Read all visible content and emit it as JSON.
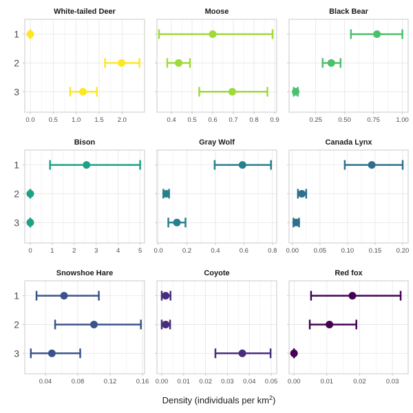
{
  "chart_data": {
    "type": "errorbar",
    "layout": "3x3 facets",
    "xlabel": "Density (individuals per km²)",
    "xlabel_base": "Density (individuals per km",
    "xlabel_sup": "2",
    "xlabel_tail": ")",
    "ylabel": "",
    "y_categories": [
      "1",
      "2",
      "3"
    ],
    "grid": true,
    "panels": [
      {
        "title": "White-tailed Deer",
        "color": "#FDE725",
        "xlim": [
          -0.12,
          2.49
        ],
        "xticks": [
          0.0,
          0.5,
          1.0,
          1.5,
          2.0
        ],
        "xtick_labels": [
          "0.0",
          "0.5",
          "1.0",
          "1.5",
          "2.0"
        ],
        "points": [
          {
            "y": "1",
            "x": 0.0,
            "low": 0.0,
            "high": 0.0
          },
          {
            "y": "2",
            "x": 1.99,
            "low": 1.63,
            "high": 2.38
          },
          {
            "y": "3",
            "x": 1.15,
            "low": 0.87,
            "high": 1.45
          }
        ]
      },
      {
        "title": "Moose",
        "color": "#A0DA39",
        "xlim": [
          0.33,
          0.91
        ],
        "xticks": [
          0.4,
          0.5,
          0.6,
          0.7,
          0.8,
          0.9
        ],
        "xtick_labels": [
          "0.4",
          "0.5",
          "0.6",
          "0.7",
          "0.8",
          "0.9"
        ],
        "points": [
          {
            "y": "1",
            "x": 0.6,
            "low": 0.34,
            "high": 0.89
          },
          {
            "y": "2",
            "x": 0.435,
            "low": 0.38,
            "high": 0.49
          },
          {
            "y": "3",
            "x": 0.695,
            "low": 0.535,
            "high": 0.865
          }
        ]
      },
      {
        "title": "Black Bear",
        "color": "#4AC16D",
        "xlim": [
          0.02,
          1.05
        ],
        "xticks": [
          0.25,
          0.5,
          0.75,
          1.0
        ],
        "xtick_labels": [
          "0.25",
          "0.50",
          "0.75",
          "1.00"
        ],
        "points": [
          {
            "y": "1",
            "x": 0.78,
            "low": 0.555,
            "high": 1.0
          },
          {
            "y": "2",
            "x": 0.385,
            "low": 0.31,
            "high": 0.465
          },
          {
            "y": "3",
            "x": 0.077,
            "low": 0.06,
            "high": 0.095
          }
        ]
      },
      {
        "title": "Bison",
        "color": "#1FA187",
        "xlim": [
          -0.25,
          5.2
        ],
        "xticks": [
          0,
          1,
          2,
          3,
          4,
          5
        ],
        "xtick_labels": [
          "0",
          "1",
          "2",
          "3",
          "4",
          "5"
        ],
        "points": [
          {
            "y": "1",
            "x": 2.56,
            "low": 0.9,
            "high": 5.0
          },
          {
            "y": "2",
            "x": 0.0,
            "low": 0.0,
            "high": 0.0
          },
          {
            "y": "3",
            "x": 0.0,
            "low": 0.0,
            "high": 0.0
          }
        ]
      },
      {
        "title": "Gray Wolf",
        "color": "#277F8E",
        "xlim": [
          -0.01,
          0.83
        ],
        "xticks": [
          0.0,
          0.2,
          0.4,
          0.6,
          0.8
        ],
        "xtick_labels": [
          "0.0",
          "0.2",
          "0.4",
          "0.6",
          "0.8"
        ],
        "points": [
          {
            "y": "1",
            "x": 0.59,
            "low": 0.395,
            "high": 0.79
          },
          {
            "y": "2",
            "x": 0.055,
            "low": 0.035,
            "high": 0.075
          },
          {
            "y": "3",
            "x": 0.13,
            "low": 0.07,
            "high": 0.19
          }
        ]
      },
      {
        "title": "Canada Lynx",
        "color": "#2E6F8E",
        "xlim": [
          -0.006,
          0.21
        ],
        "xticks": [
          0.0,
          0.05,
          0.1,
          0.15,
          0.2
        ],
        "xtick_labels": [
          "0.00",
          "0.05",
          "0.10",
          "0.15",
          "0.20"
        ],
        "points": [
          {
            "y": "1",
            "x": 0.144,
            "low": 0.095,
            "high": 0.2
          },
          {
            "y": "2",
            "x": 0.017,
            "low": 0.01,
            "high": 0.025
          },
          {
            "y": "3",
            "x": 0.007,
            "low": 0.002,
            "high": 0.012
          }
        ]
      },
      {
        "title": "Snowshoe Hare",
        "color": "#3B528B",
        "xlim": [
          0.0145,
          0.1625
        ],
        "xticks": [
          0.04,
          0.08,
          0.12,
          0.16
        ],
        "xtick_labels": [
          "0.04",
          "0.08",
          "0.12",
          "0.16"
        ],
        "points": [
          {
            "y": "1",
            "x": 0.063,
            "low": 0.029,
            "high": 0.106
          },
          {
            "y": "2",
            "x": 0.1,
            "low": 0.052,
            "high": 0.158
          },
          {
            "y": "3",
            "x": 0.048,
            "low": 0.022,
            "high": 0.083
          }
        ]
      },
      {
        "title": "Coyote",
        "color": "#472D7B",
        "xlim": [
          -0.0022,
          0.0525
        ],
        "xticks": [
          0.0,
          0.01,
          0.02,
          0.03,
          0.04,
          0.05
        ],
        "xtick_labels": [
          "0.00",
          "0.01",
          "0.02",
          "0.03",
          "0.04",
          "0.05"
        ],
        "points": [
          {
            "y": "1",
            "x": 0.0018,
            "low": 0.0,
            "high": 0.004
          },
          {
            "y": "2",
            "x": 0.0018,
            "low": 0.0,
            "high": 0.0038
          },
          {
            "y": "3",
            "x": 0.0368,
            "low": 0.0245,
            "high": 0.0497
          }
        ]
      },
      {
        "title": "Red fox",
        "color": "#440154",
        "xlim": [
          -0.0015,
          0.0348
        ],
        "xticks": [
          0.0,
          0.01,
          0.02,
          0.03
        ],
        "xtick_labels": [
          "0.00",
          "0.01",
          "0.02",
          "0.03"
        ],
        "points": [
          {
            "y": "1",
            "x": 0.0178,
            "low": 0.0052,
            "high": 0.0325
          },
          {
            "y": "2",
            "x": 0.0108,
            "low": 0.0048,
            "high": 0.019
          },
          {
            "y": "3",
            "x": 0.0,
            "low": 0.0,
            "high": 0.0
          }
        ]
      }
    ]
  }
}
